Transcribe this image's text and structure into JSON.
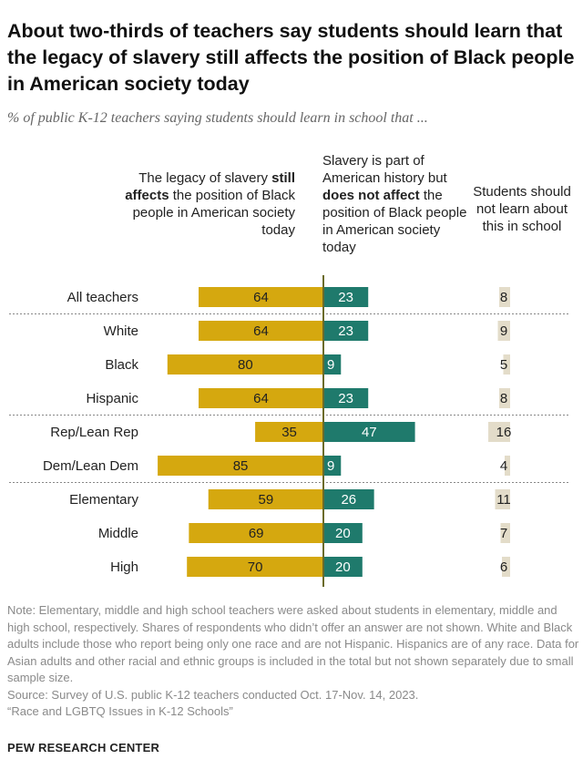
{
  "title": "About two-thirds of teachers say students should learn that the legacy of slavery still affects the position of Black people in American society today",
  "subtitle": "% of public K-12 teachers saying students should learn in school that ...",
  "colors": {
    "affects": "#D5A80F",
    "not_affect": "#1F7A6C",
    "no_learn": "#E3DCC9",
    "axis": "#6B6B2A",
    "divider": "#888888"
  },
  "headers": {
    "left": {
      "pre": "The legacy of slavery",
      "bold": "still affects",
      "post": "the position of Black people in American society today"
    },
    "middle": {
      "pre": "Slavery is part of American history but",
      "bold": "does not affect",
      "post": "the position of Black people in American society today"
    },
    "right": "Students should not learn about this in school"
  },
  "chart_data": {
    "type": "bar",
    "title": "About two-thirds of teachers say students should learn that the legacy of slavery still affects the position of Black people in American society today",
    "categories": [
      "All teachers",
      "White",
      "Black",
      "Hispanic",
      "Rep/Lean Rep",
      "Dem/Lean Dem",
      "Elementary",
      "Middle",
      "High"
    ],
    "groups_after": [
      0,
      3,
      5
    ],
    "series": [
      {
        "name": "The legacy of slavery still affects the position of Black people in American society today",
        "values": [
          64,
          64,
          80,
          64,
          35,
          85,
          59,
          69,
          70
        ]
      },
      {
        "name": "Slavery is part of American history but does not affect the position of Black people in American society today",
        "values": [
          23,
          23,
          9,
          23,
          47,
          9,
          26,
          20,
          20
        ]
      },
      {
        "name": "Students should not learn about this in school",
        "values": [
          8,
          9,
          5,
          8,
          16,
          4,
          11,
          7,
          6
        ]
      }
    ]
  },
  "notes": [
    "Note: Elementary, middle and high school teachers were asked about students in elementary, middle and high school, respectively. Shares of respondents who didn’t offer an answer are not shown. White and Black adults include those who report being only one race and are not Hispanic. Hispanics are of any race. Data for Asian adults and other racial and ethnic groups is included in the total but not shown separately due to small sample size.",
    "Source: Survey of U.S. public K-12 teachers conducted Oct. 17-Nov. 14, 2023.",
    "“Race and LGBTQ Issues in K-12 Schools”"
  ],
  "brand": "PEW RESEARCH CENTER"
}
